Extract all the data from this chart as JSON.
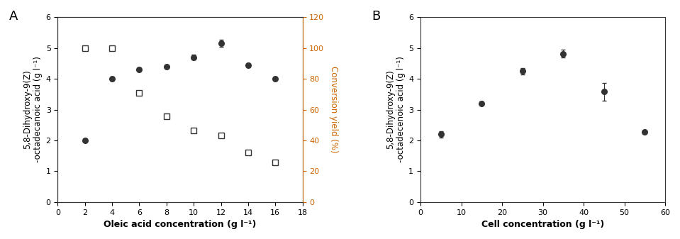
{
  "panel_A": {
    "title": "A",
    "xlabel": "Oleic acid concentration (g l⁻¹)",
    "ylabel_left": "5,8-Dihydroxy-9(Z)\n-octadecanoic acid (g l⁻¹)",
    "ylabel_right": "Conversion yield (%)",
    "ylabel_left_color": "#000000",
    "ylabel_right_color": "#cc6600",
    "x": [
      2,
      4,
      6,
      8,
      10,
      12,
      14,
      16
    ],
    "y_filled": [
      2.0,
      4.0,
      4.3,
      4.4,
      4.7,
      5.15,
      4.45,
      4.0
    ],
    "y_filled_err": [
      0.05,
      0.05,
      0.05,
      0.05,
      0.08,
      0.12,
      0.06,
      0.05
    ],
    "y_open_pct": [
      100.0,
      100.0,
      71.0,
      55.6,
      46.6,
      43.0,
      32.0,
      25.6
    ],
    "y_open_err_pct": [
      1.0,
      1.0,
      1.0,
      1.0,
      1.0,
      1.0,
      1.0,
      1.0
    ],
    "xlim": [
      0,
      18
    ],
    "ylim_left": [
      0,
      6
    ],
    "ylim_right": [
      0,
      120
    ],
    "xticks": [
      0,
      2,
      4,
      6,
      8,
      10,
      12,
      14,
      16,
      18
    ],
    "yticks_left": [
      0,
      1,
      2,
      3,
      4,
      5,
      6
    ],
    "yticks_right": [
      0,
      20,
      40,
      60,
      80,
      100,
      120
    ]
  },
  "panel_B": {
    "title": "B",
    "xlabel": "Cell concentration (g l⁻¹)",
    "ylabel_left": "5,8-Dihydroxy-9(Z)\n-octadecenoic acid (g l⁻¹)",
    "x": [
      5,
      15,
      25,
      35,
      45,
      55
    ],
    "y_filled": [
      2.2,
      3.2,
      4.25,
      4.82,
      3.58,
      2.28
    ],
    "y_filled_err": [
      0.1,
      0.06,
      0.1,
      0.12,
      0.28,
      0.05
    ],
    "xlim": [
      0,
      60
    ],
    "ylim_left": [
      0,
      6
    ],
    "xticks": [
      0,
      10,
      20,
      30,
      40,
      50,
      60
    ],
    "yticks_left": [
      0,
      1,
      2,
      3,
      4,
      5,
      6
    ]
  },
  "line_color": "#333333",
  "marker_filled": "o",
  "marker_open": "s",
  "markersize": 5.5,
  "linewidth": 1.0
}
